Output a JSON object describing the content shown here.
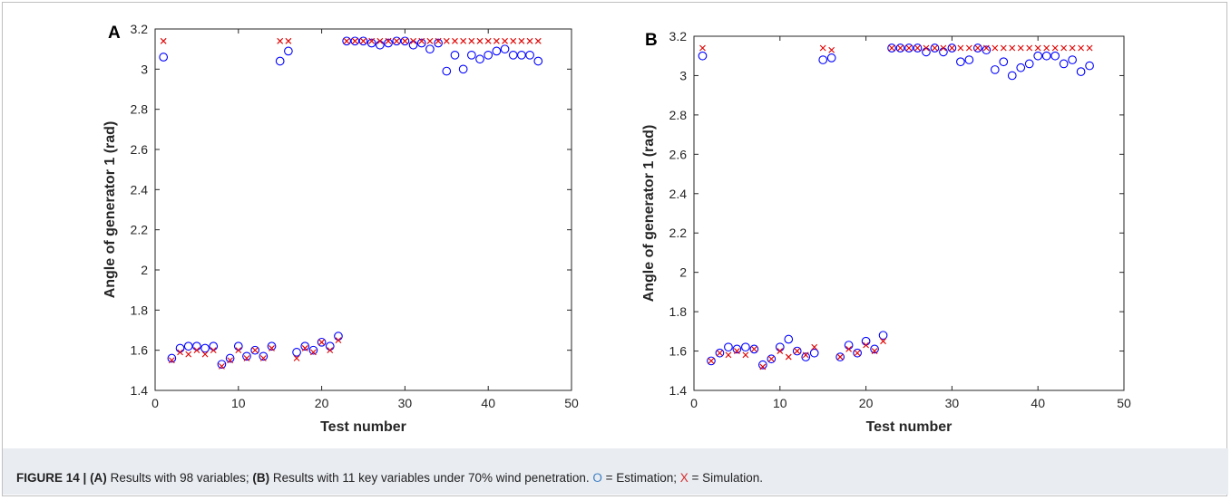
{
  "caption": {
    "figure_label": "FIGURE 14 |",
    "a_label": "(A)",
    "a_text": " Results with 98 variables; ",
    "b_label": "(B)",
    "b_text": " Results with 11 key variables under 70% wind penetration. ",
    "est_symbol": "O",
    "est_text": " = Estimation; ",
    "sim_symbol": "X",
    "sim_text": " = Simulation."
  },
  "colors": {
    "estimation": "#0000ff",
    "simulation": "#e00000",
    "est_caption": "#3d7fc4",
    "sim_caption": "#d62b2b"
  },
  "chart_data": [
    {
      "panel": "A",
      "type": "scatter",
      "xlabel": "Test number",
      "ylabel": "Angle of generator 1 (rad)",
      "xlim": [
        0,
        50
      ],
      "ylim": [
        1.4,
        3.2
      ],
      "xticks": [
        0,
        10,
        20,
        30,
        40,
        50
      ],
      "yticks": [
        1.4,
        1.6,
        1.8,
        2,
        2.2,
        2.4,
        2.6,
        2.8,
        3,
        3.2
      ],
      "xtick_labels": [
        "0",
        "10",
        "20",
        "30",
        "40",
        "50"
      ],
      "ytick_labels": [
        "1.4",
        "1.6",
        "1.8",
        "2",
        "2.2",
        "2.4",
        "2.6",
        "2.8",
        "3",
        "3.2"
      ],
      "grid": false,
      "series": [
        {
          "marker": "o",
          "x": [
            1,
            2,
            3,
            4,
            5,
            6,
            7,
            8,
            9,
            10,
            11,
            12,
            13,
            14,
            15,
            16,
            17,
            18,
            19,
            20,
            21,
            22,
            23,
            24,
            25,
            26,
            27,
            28,
            29,
            30,
            31,
            32,
            33,
            34,
            35,
            36,
            37,
            38,
            39,
            40,
            41,
            42,
            43,
            44,
            45,
            46
          ],
          "values": [
            3.06,
            1.56,
            1.61,
            1.62,
            1.62,
            1.61,
            1.62,
            1.53,
            1.56,
            1.62,
            1.57,
            1.6,
            1.57,
            1.62,
            3.04,
            3.09,
            1.59,
            1.62,
            1.6,
            1.64,
            1.62,
            1.67,
            3.14,
            3.14,
            3.14,
            3.13,
            3.12,
            3.13,
            3.14,
            3.14,
            3.12,
            3.13,
            3.1,
            3.13,
            2.99,
            3.07,
            3.0,
            3.07,
            3.05,
            3.07,
            3.09,
            3.1,
            3.07,
            3.07,
            3.07,
            3.04
          ]
        },
        {
          "marker": "x",
          "x": [
            1,
            2,
            3,
            4,
            5,
            6,
            7,
            8,
            9,
            10,
            11,
            12,
            13,
            14,
            15,
            16,
            17,
            18,
            19,
            20,
            21,
            22,
            23,
            24,
            25,
            26,
            27,
            28,
            29,
            30,
            31,
            32,
            33,
            34,
            35,
            36,
            37,
            38,
            39,
            40,
            41,
            42,
            43,
            44,
            45,
            46
          ],
          "values": [
            3.14,
            1.55,
            1.59,
            1.58,
            1.6,
            1.58,
            1.6,
            1.52,
            1.55,
            1.6,
            1.56,
            1.6,
            1.56,
            1.61,
            3.14,
            3.14,
            1.56,
            1.61,
            1.59,
            1.64,
            1.6,
            1.65,
            3.14,
            3.14,
            3.14,
            3.14,
            3.14,
            3.14,
            3.14,
            3.14,
            3.14,
            3.14,
            3.14,
            3.14,
            3.14,
            3.14,
            3.14,
            3.14,
            3.14,
            3.14,
            3.14,
            3.14,
            3.14,
            3.14,
            3.14,
            3.14
          ]
        }
      ]
    },
    {
      "panel": "B",
      "type": "scatter",
      "xlabel": "Test number",
      "ylabel": "Angle of generator 1 (rad)",
      "xlim": [
        0,
        50
      ],
      "ylim": [
        1.4,
        3.2
      ],
      "xticks": [
        0,
        10,
        20,
        30,
        40,
        50
      ],
      "yticks": [
        1.4,
        1.6,
        1.8,
        2,
        2.2,
        2.4,
        2.6,
        2.8,
        3,
        3.2
      ],
      "xtick_labels": [
        "0",
        "10",
        "20",
        "30",
        "40",
        "50"
      ],
      "ytick_labels": [
        "1.4",
        "1.6",
        "1.8",
        "2",
        "2.2",
        "2.4",
        "2.6",
        "2.8",
        "3",
        "3.2"
      ],
      "grid": false,
      "series": [
        {
          "marker": "o",
          "x": [
            1,
            2,
            3,
            4,
            5,
            6,
            7,
            8,
            9,
            10,
            11,
            12,
            13,
            14,
            15,
            16,
            17,
            18,
            19,
            20,
            21,
            22,
            23,
            24,
            25,
            26,
            27,
            28,
            29,
            30,
            31,
            32,
            33,
            34,
            35,
            36,
            37,
            38,
            39,
            40,
            41,
            42,
            43,
            44,
            45,
            46
          ],
          "values": [
            3.1,
            1.55,
            1.59,
            1.62,
            1.61,
            1.62,
            1.61,
            1.53,
            1.56,
            1.62,
            1.66,
            1.6,
            1.57,
            1.59,
            3.08,
            3.09,
            1.57,
            1.63,
            1.59,
            1.65,
            1.61,
            1.68,
            3.14,
            3.14,
            3.14,
            3.14,
            3.12,
            3.14,
            3.12,
            3.14,
            3.07,
            3.08,
            3.14,
            3.13,
            3.03,
            3.07,
            3.0,
            3.04,
            3.06,
            3.1,
            3.1,
            3.1,
            3.06,
            3.08,
            3.02,
            3.05
          ]
        },
        {
          "marker": "x",
          "x": [
            1,
            2,
            3,
            4,
            5,
            6,
            7,
            8,
            9,
            10,
            11,
            12,
            13,
            14,
            15,
            16,
            17,
            18,
            19,
            20,
            21,
            22,
            23,
            24,
            25,
            26,
            27,
            28,
            29,
            30,
            31,
            32,
            33,
            34,
            35,
            36,
            37,
            38,
            39,
            40,
            41,
            42,
            43,
            44,
            45,
            46
          ],
          "values": [
            3.14,
            1.55,
            1.59,
            1.58,
            1.6,
            1.58,
            1.61,
            1.52,
            1.56,
            1.6,
            1.57,
            1.6,
            1.58,
            1.62,
            3.14,
            3.13,
            1.57,
            1.61,
            1.59,
            1.63,
            1.6,
            1.65,
            3.14,
            3.14,
            3.14,
            3.14,
            3.14,
            3.14,
            3.14,
            3.14,
            3.14,
            3.14,
            3.14,
            3.14,
            3.14,
            3.14,
            3.14,
            3.14,
            3.14,
            3.14,
            3.14,
            3.14,
            3.14,
            3.14,
            3.14,
            3.14
          ]
        }
      ]
    }
  ]
}
